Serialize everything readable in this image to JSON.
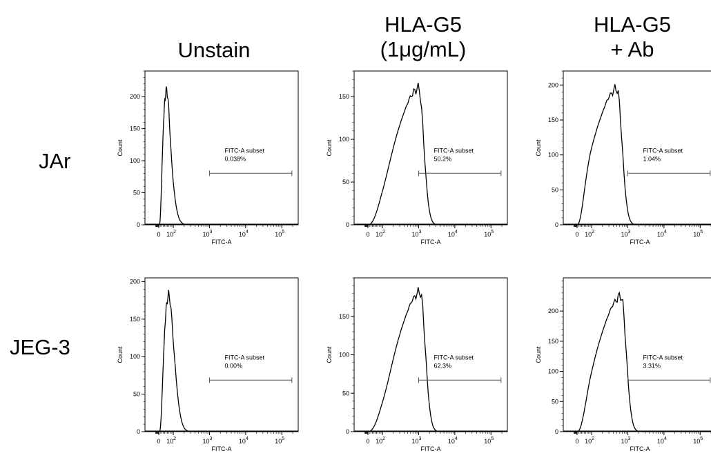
{
  "figure": {
    "columns": [
      {
        "lines": [
          "Unstain"
        ]
      },
      {
        "lines": [
          "HLA-G5",
          "(1μg/mL)"
        ]
      },
      {
        "lines": [
          "HLA-G5",
          "+ Ab"
        ]
      }
    ],
    "rows": [
      "JAr",
      "JEG-3"
    ]
  },
  "chart_data": [
    {
      "type": "area",
      "row": "JAr",
      "column": "Unstain",
      "xlabel": "FITC-A",
      "ylabel": "Count",
      "ylim": [
        0,
        240
      ],
      "y_ticks": [
        0,
        50,
        100,
        150,
        200
      ],
      "x_scale": "biexponential",
      "x_ticks": [
        "0",
        "10^2",
        "10^3",
        "10^4",
        "10^5"
      ],
      "peak_x": 55,
      "peak_count": 210,
      "gate": {
        "label": "FITC-A subset",
        "value": "0.038%",
        "x_range": [
          1000,
          190000
        ]
      }
    },
    {
      "type": "area",
      "row": "JAr",
      "column": "HLA-G5 (1μg/mL)",
      "xlabel": "FITC-A",
      "ylabel": "Count",
      "ylim": [
        0,
        180
      ],
      "y_ticks": [
        0,
        50,
        100,
        150
      ],
      "x_scale": "biexponential",
      "x_ticks": [
        "0",
        "10^2",
        "10^3",
        "10^4",
        "10^5"
      ],
      "peak_x": 1000,
      "peak_count": 160,
      "gate": {
        "label": "FITC-A subset",
        "value": "50.2%",
        "x_range": [
          1000,
          190000
        ]
      }
    },
    {
      "type": "area",
      "row": "JAr",
      "column": "HLA-G5 + Ab",
      "xlabel": "FITC-A",
      "ylabel": "Count",
      "ylim": [
        0,
        220
      ],
      "y_ticks": [
        0,
        50,
        100,
        150,
        200
      ],
      "x_scale": "biexponential",
      "x_ticks": [
        "0",
        "10^2",
        "10^3",
        "10^4",
        "10^5"
      ],
      "peak_x": 500,
      "peak_count": 195,
      "gate": {
        "label": "FITC-A subset",
        "value": "1.04%",
        "x_range": [
          1000,
          190000
        ]
      }
    },
    {
      "type": "area",
      "row": "JEG-3",
      "column": "Unstain",
      "xlabel": "FITC-A",
      "ylabel": "Count",
      "ylim": [
        0,
        205
      ],
      "y_ticks": [
        0,
        50,
        100,
        150,
        200
      ],
      "x_scale": "biexponential",
      "x_ticks": [
        "0",
        "10^2",
        "10^3",
        "10^4",
        "10^5"
      ],
      "peak_x": 70,
      "peak_count": 182,
      "gate": {
        "label": "FITC-A subset",
        "value": "0.00%",
        "x_range": [
          1000,
          190000
        ]
      }
    },
    {
      "type": "area",
      "row": "JEG-3",
      "column": "HLA-G5 (1μg/mL)",
      "xlabel": "FITC-A",
      "ylabel": "Count",
      "ylim": [
        0,
        200
      ],
      "y_ticks": [
        0,
        50,
        100,
        150
      ],
      "x_scale": "biexponential",
      "x_ticks": [
        "0",
        "10^2",
        "10^3",
        "10^4",
        "10^5"
      ],
      "peak_x": 1100,
      "peak_count": 182,
      "gate": {
        "label": "FITC-A subset",
        "value": "62.3%",
        "x_range": [
          1000,
          190000
        ]
      }
    },
    {
      "type": "area",
      "row": "JEG-3",
      "column": "HLA-G5 + Ab",
      "xlabel": "FITC-A",
      "ylabel": "Count",
      "ylim": [
        0,
        255
      ],
      "y_ticks": [
        0,
        50,
        100,
        150,
        200
      ],
      "x_scale": "biexponential",
      "x_ticks": [
        "0",
        "10^2",
        "10^3",
        "10^4",
        "10^5"
      ],
      "peak_x": 650,
      "peak_count": 225,
      "gate": {
        "label": "FITC-A subset",
        "value": "3.31%",
        "x_range": [
          1000,
          190000
        ]
      }
    }
  ]
}
